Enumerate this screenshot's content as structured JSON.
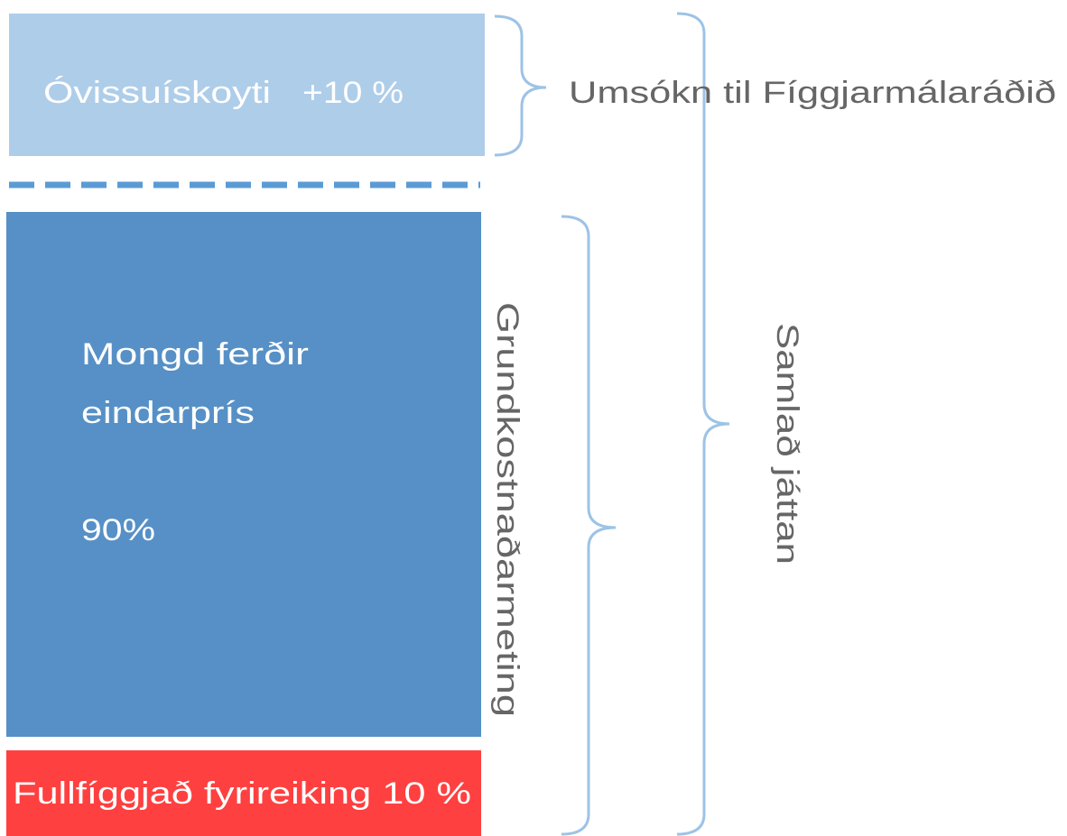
{
  "boxes": {
    "contingency": {
      "label": "Óvissuískoyti",
      "amount": "+10 %"
    },
    "base": {
      "lines": [
        "Mongd ferðir",
        "eindarprís",
        "90%"
      ]
    },
    "prefunded": {
      "label": "Fullfíggjað fyrireiking 10 %"
    }
  },
  "braces": {
    "application": "Umsókn til Fíggjarmálaráðið",
    "base_estimate": "Grundkostnaðarmeting",
    "total": "Samlað játtan"
  }
}
